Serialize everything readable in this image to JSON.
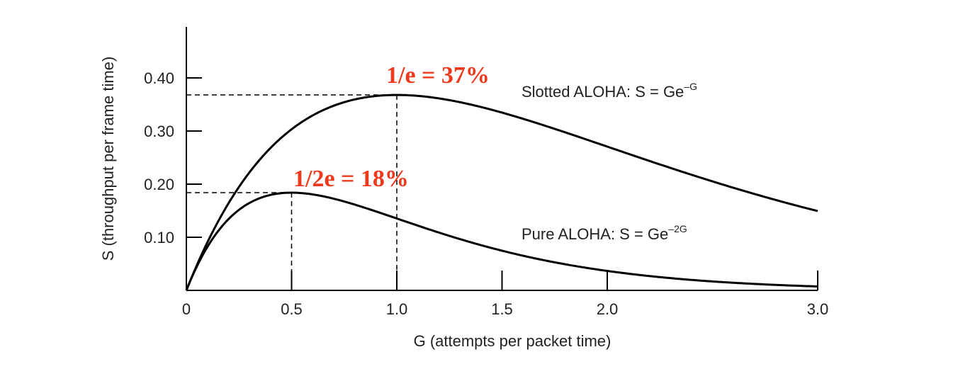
{
  "chart_data": {
    "type": "line",
    "xlabel": "G (attempts per packet time)",
    "ylabel": "S (throughput per frame time)",
    "xlim": [
      0,
      3.0
    ],
    "ylim": [
      0,
      0.5
    ],
    "x_ticks": [
      0,
      0.5,
      1.0,
      1.5,
      2.0,
      3.0
    ],
    "x_tick_labels": [
      "0",
      "0.5",
      "1.0",
      "1.5",
      "2.0",
      "3.0"
    ],
    "y_ticks": [
      0.1,
      0.2,
      0.3,
      0.4
    ],
    "y_tick_labels": [
      "0.10",
      "0.20",
      "0.30",
      "0.40"
    ],
    "grid": false,
    "series": [
      {
        "name": "Slotted ALOHA",
        "formula": "S = Ge^-G",
        "label_main": "Slotted ALOHA: S = Ge",
        "label_exp": "–G",
        "x": [
          0,
          0.1,
          0.2,
          0.3,
          0.4,
          0.5,
          0.6,
          0.7,
          0.8,
          0.9,
          1.0,
          1.2,
          1.4,
          1.6,
          1.8,
          2.0,
          2.2,
          2.4,
          2.6,
          2.8,
          3.0
        ],
        "values": [
          0,
          0.0905,
          0.1637,
          0.2222,
          0.2681,
          0.3033,
          0.3293,
          0.3476,
          0.3595,
          0.3659,
          0.3679,
          0.3614,
          0.3452,
          0.323,
          0.2975,
          0.2707,
          0.2438,
          0.2177,
          0.1931,
          0.1703,
          0.1494
        ],
        "peak": {
          "x": 1.0,
          "y": 0.368
        }
      },
      {
        "name": "Pure ALOHA",
        "formula": "S = Ge^-2G",
        "label_main": "Pure ALOHA: S = Ge",
        "label_exp": "–2G",
        "x": [
          0,
          0.1,
          0.2,
          0.3,
          0.4,
          0.5,
          0.6,
          0.7,
          0.8,
          0.9,
          1.0,
          1.2,
          1.4,
          1.6,
          1.8,
          2.0,
          2.2,
          2.4,
          2.6,
          2.8,
          3.0
        ],
        "values": [
          0,
          0.0819,
          0.1341,
          0.1646,
          0.1797,
          0.1839,
          0.1807,
          0.1726,
          0.1615,
          0.1488,
          0.1353,
          0.1089,
          0.0852,
          0.0652,
          0.0492,
          0.0366,
          0.027,
          0.0198,
          0.0144,
          0.0104,
          0.0074
        ],
        "peak": {
          "x": 0.5,
          "y": 0.184
        }
      }
    ],
    "annotations": [
      {
        "text": "1/e = 37%",
        "color": "#ee3a1c"
      },
      {
        "text": "1/2e = 18%",
        "color": "#ee3a1c"
      }
    ],
    "line_color": "#000000"
  }
}
